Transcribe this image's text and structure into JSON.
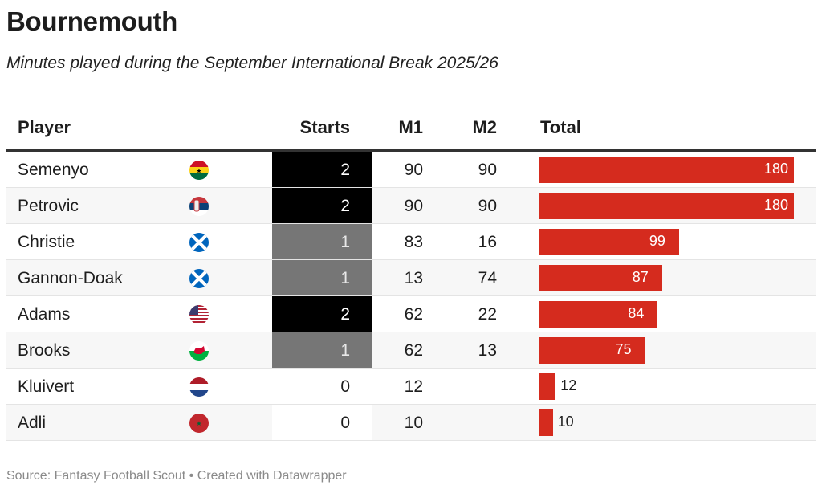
{
  "chart_data": {
    "type": "table",
    "title": "Bournemouth",
    "subtitle": "Minutes played during the September International Break 2025/26",
    "columns": [
      "Player",
      "Starts",
      "M1",
      "M2",
      "Total"
    ],
    "rows": [
      {
        "player": "Semenyo",
        "flag": "ghana",
        "starts": "2",
        "m1": "90",
        "m2": "90",
        "total": 180
      },
      {
        "player": "Petrovic",
        "flag": "serbia",
        "starts": "2",
        "m1": "90",
        "m2": "90",
        "total": 180
      },
      {
        "player": "Christie",
        "flag": "scotland",
        "starts": "1",
        "m1": "83",
        "m2": "16",
        "total": 99
      },
      {
        "player": "Gannon-Doak",
        "flag": "scotland",
        "starts": "1",
        "m1": "13",
        "m2": "74",
        "total": 87
      },
      {
        "player": "Adams",
        "flag": "usa",
        "starts": "2",
        "m1": "62",
        "m2": "22",
        "total": 84
      },
      {
        "player": "Brooks",
        "flag": "wales",
        "starts": "1",
        "m1": "62",
        "m2": "13",
        "total": 75
      },
      {
        "player": "Kluivert",
        "flag": "netherlands",
        "starts": "0",
        "m1": "12",
        "m2": "",
        "total": 12
      },
      {
        "player": "Adli",
        "flag": "morocco",
        "starts": "0",
        "m1": "10",
        "m2": "",
        "total": 10
      }
    ],
    "total_range": [
      0,
      180
    ],
    "colors": {
      "bar": "#d52b1e",
      "starts_2": "#000000",
      "starts_1": "#767676",
      "starts_0": "#ffffff"
    }
  },
  "source": "Source: Fantasy Football Scout • Created with Datawrapper"
}
